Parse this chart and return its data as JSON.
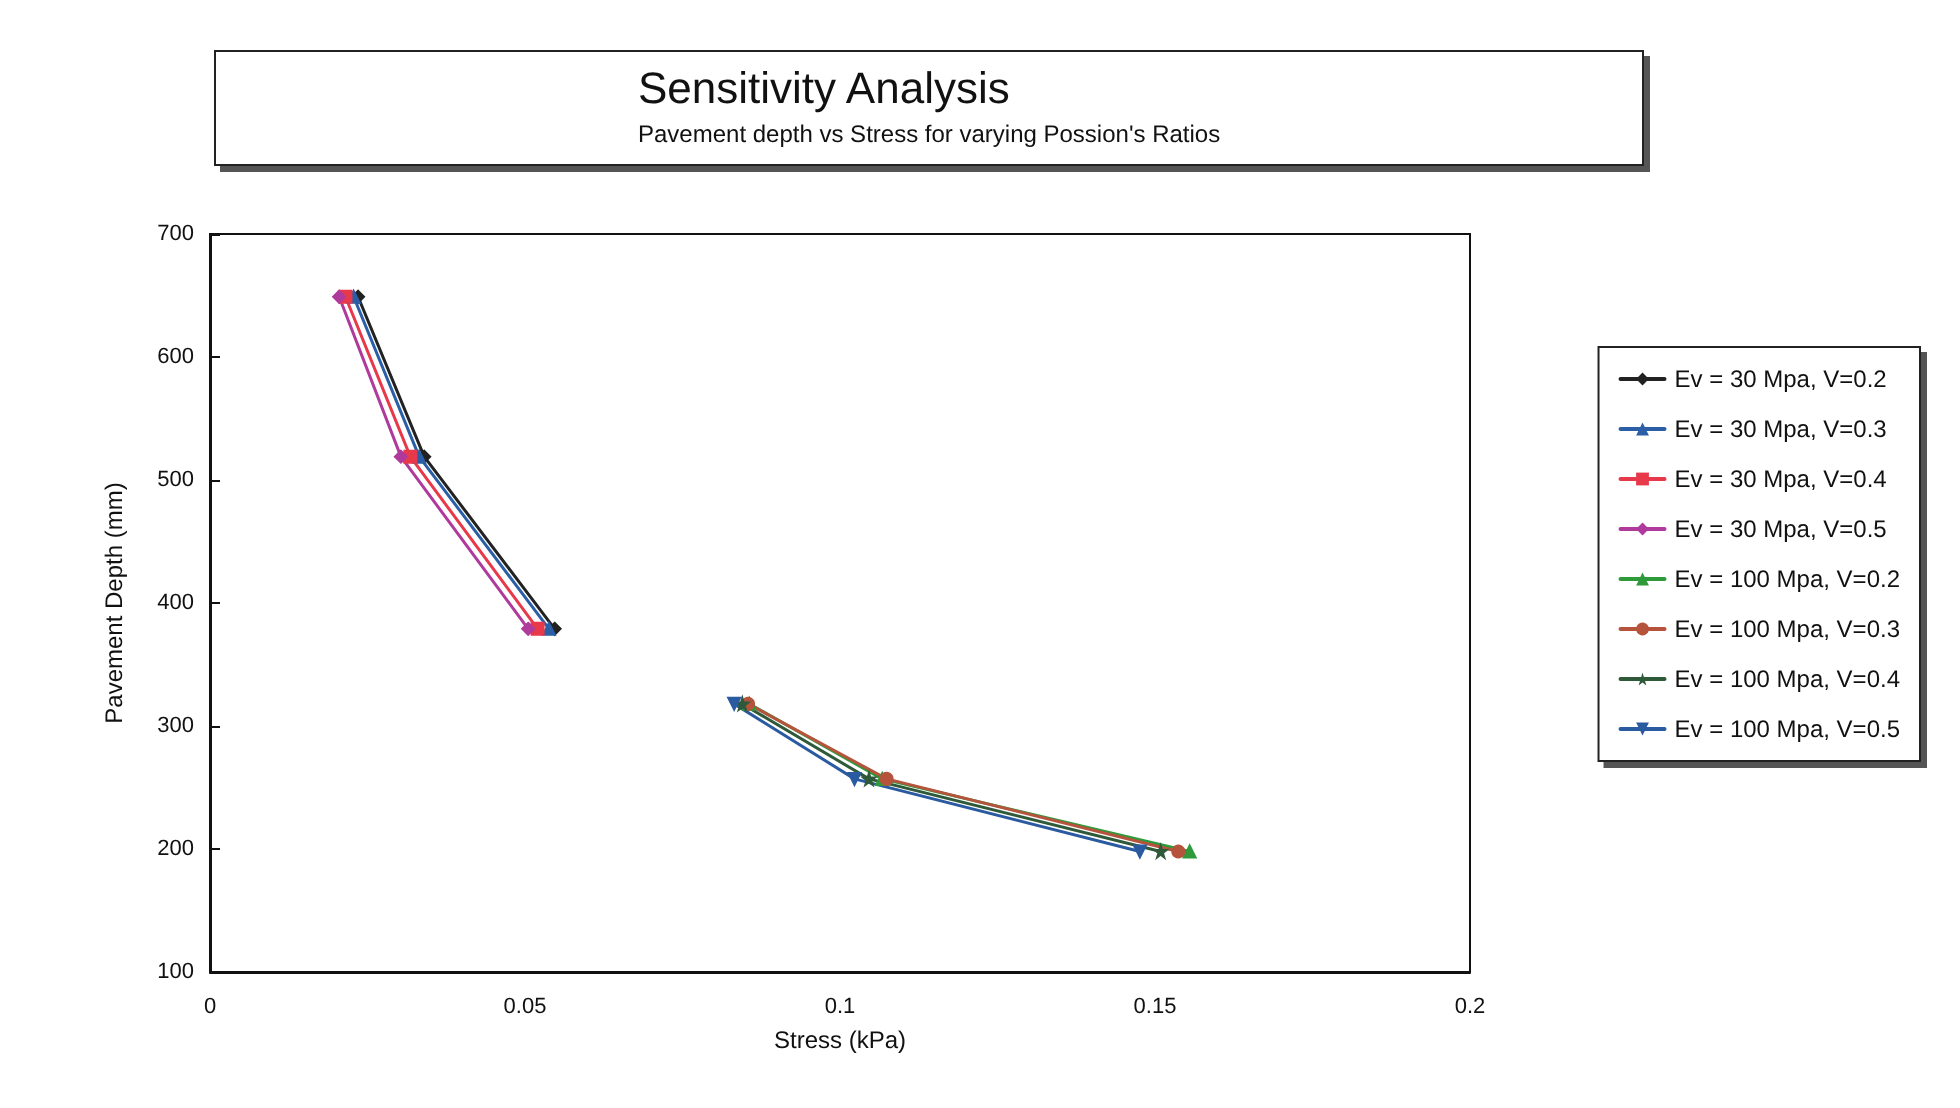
{
  "chart_data": {
    "type": "line",
    "title": "Sensitivity Analysis",
    "subtitle": "Pavement depth vs Stress for varying Possion's Ratios",
    "xlabel": "Stress (kPa)",
    "ylabel": "Pavement Depth (mm)",
    "xlim": [
      0,
      0.2
    ],
    "xticks": [
      0,
      0.05,
      0.1,
      0.15,
      0.2
    ],
    "ylim": [
      100,
      700
    ],
    "yticks": [
      100,
      200,
      300,
      400,
      500,
      600,
      700
    ],
    "grid": false,
    "legend": "right",
    "line_style": "solid",
    "series": [
      {
        "name": "Ev = 30 Mpa, V=0.2",
        "color": "#222222",
        "marker": "diamond",
        "x": [
          0.0235,
          0.034,
          0.0547
        ],
        "values": [
          649,
          519,
          379
        ]
      },
      {
        "name": "Ev = 30 Mpa, V=0.3",
        "color": "#2a5fa8",
        "marker": "triangle",
        "x": [
          0.0228,
          0.0332,
          0.0538
        ],
        "values": [
          649,
          519,
          379
        ]
      },
      {
        "name": "Ev = 30 Mpa, V=0.4",
        "color": "#e8394a",
        "marker": "square",
        "x": [
          0.0215,
          0.0318,
          0.052
        ],
        "values": [
          649,
          519,
          379
        ]
      },
      {
        "name": "Ev = 30 Mpa, V=0.5",
        "color": "#b03a9c",
        "marker": "diamond",
        "x": [
          0.0205,
          0.0303,
          0.0505
        ],
        "values": [
          649,
          519,
          379
        ]
      },
      {
        "name": "Ev = 100 Mpa, V=0.2",
        "color": "#2e9a3a",
        "marker": "triangle",
        "x": [
          0.0856,
          0.1067,
          0.1555
        ],
        "values": [
          318,
          257,
          198
        ]
      },
      {
        "name": "Ev = 100 Mpa, V=0.3",
        "color": "#b5533c",
        "marker": "circle",
        "x": [
          0.0854,
          0.1074,
          0.1537
        ],
        "values": [
          318,
          257,
          198
        ]
      },
      {
        "name": "Ev = 100 Mpa, V=0.4",
        "color": "#2f5a3a",
        "marker": "star",
        "x": [
          0.0845,
          0.1046,
          0.1509
        ],
        "values": [
          318,
          257,
          198
        ]
      },
      {
        "name": "Ev = 100 Mpa, V=0.5",
        "color": "#2a5aa0",
        "marker": "triangle-down",
        "x": [
          0.0832,
          0.1023,
          0.1476
        ],
        "values": [
          318,
          257,
          198
        ]
      }
    ]
  }
}
